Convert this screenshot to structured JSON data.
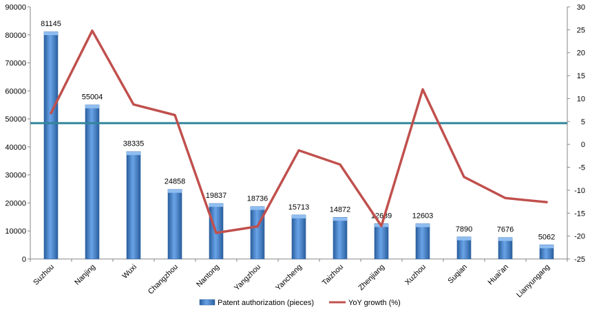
{
  "chart_data": {
    "type": "bar",
    "categories": [
      "Suzhou",
      "Nanjing",
      "Wuxi",
      "Changzhou",
      "Nantong",
      "Yangzhou",
      "Yancheng",
      "Taizhou",
      "Zhenjiang",
      "Xuzhou",
      "Suqian",
      "Huai'an",
      "Lianyungang"
    ],
    "series": [
      {
        "name": "Patent authorization (pieces)",
        "type": "bar",
        "axis": "left",
        "color": "#3a78c9",
        "values": [
          81145,
          55004,
          38335,
          24858,
          19837,
          18736,
          15713,
          14872,
          12639,
          12603,
          7890,
          7676,
          5062
        ]
      },
      {
        "name": "YoY growth (%)",
        "type": "line",
        "axis": "right",
        "color": "#c0504d",
        "values": [
          6.8,
          24.8,
          8.7,
          6.4,
          -19.3,
          -17.9,
          -1.3,
          -4.4,
          -17.8,
          12.0,
          -7.1,
          -11.7,
          -12.6
        ]
      }
    ],
    "data_labels": [
      "81145",
      "55004",
      "38335",
      "24858",
      "19837",
      "18736",
      "15713",
      "14872",
      "12639",
      "12603",
      "7890",
      "7676",
      "5062"
    ],
    "y_left": {
      "min": 0,
      "max": 90000,
      "step": 10000,
      "ticks": [
        "0",
        "10000",
        "20000",
        "30000",
        "40000",
        "50000",
        "60000",
        "70000",
        "80000",
        "90000"
      ]
    },
    "y_right": {
      "min": -25,
      "max": 30,
      "step": 5,
      "ticks": [
        "-25",
        "-20",
        "-15",
        "-10",
        "-5",
        "0",
        "5",
        "10",
        "15",
        "20",
        "25",
        "30"
      ]
    },
    "reference_line": {
      "axis": "left",
      "value": 48500,
      "color": "#31859c"
    },
    "title": "",
    "xlabel": "",
    "ylabel": "",
    "grid": false,
    "legend_position": "bottom"
  }
}
